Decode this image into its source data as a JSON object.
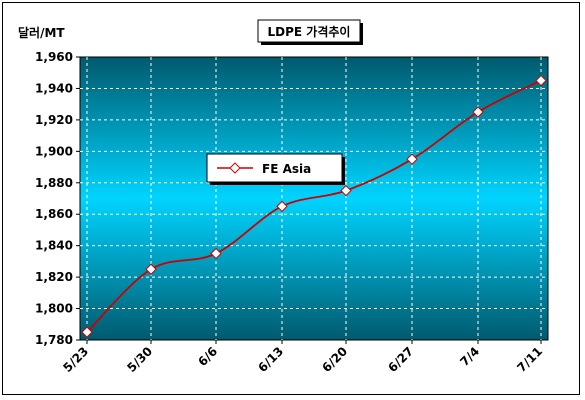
{
  "chart_data": {
    "type": "line",
    "title": "LDPE 가격추이",
    "ylabel": "달러/MT",
    "xlabel": "",
    "categories": [
      "5/23",
      "5/30",
      "6/6",
      "6/13",
      "6/20",
      "6/27",
      "7/4",
      "7/11"
    ],
    "series": [
      {
        "name": "FE Asia",
        "values": [
          1785,
          1825,
          1835,
          1865,
          1875,
          1895,
          1925,
          1945
        ],
        "color": "#cc0000"
      }
    ],
    "ylim": [
      1780,
      1960
    ],
    "yticks": [
      "1,780",
      "1,800",
      "1,820",
      "1,840",
      "1,860",
      "1,880",
      "1,900",
      "1,920",
      "1,940",
      "1,960"
    ],
    "grid": true,
    "legend": "center-left",
    "colors": {
      "plot_center": "#00d4ff",
      "plot_edge": "#005f73",
      "line": "#cc0000",
      "marker_fill": "#ffffff"
    }
  }
}
